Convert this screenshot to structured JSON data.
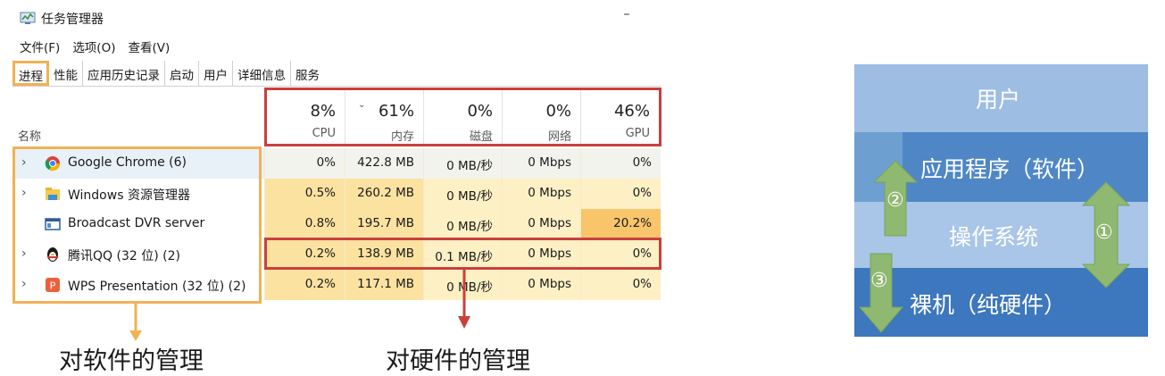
{
  "window": {
    "title": "任务管理器",
    "minimize_glyph": "–",
    "menu": [
      "文件(F)",
      "选项(O)",
      "查看(V)"
    ],
    "tabs": [
      "进程",
      "性能",
      "应用历史记录",
      "启动",
      "用户",
      "详细信息",
      "服务"
    ],
    "active_tab": "进程"
  },
  "table": {
    "name_header": "名称",
    "columns": [
      {
        "pct": "8%",
        "label": "CPU"
      },
      {
        "pct": "61%",
        "label": "内存",
        "sorted": true
      },
      {
        "pct": "0%",
        "label": "磁盘"
      },
      {
        "pct": "0%",
        "label": "网络"
      },
      {
        "pct": "46%",
        "label": "GPU"
      }
    ],
    "rows": [
      {
        "name": "Google Chrome (6)",
        "icon": "chrome-icon",
        "cpu": "0%",
        "mem": "422.8 MB",
        "disk": "0 MB/秒",
        "net": "0 Mbps",
        "gpu": "0%"
      },
      {
        "name": "Windows 资源管理器",
        "icon": "folder-icon",
        "cpu": "0.5%",
        "mem": "260.2 MB",
        "disk": "0 MB/秒",
        "net": "0 Mbps",
        "gpu": "0%"
      },
      {
        "name": "Broadcast DVR server",
        "icon": "window-icon",
        "cpu": "0.8%",
        "mem": "195.7 MB",
        "disk": "0 MB/秒",
        "net": "0 Mbps",
        "gpu": "20.2%"
      },
      {
        "name": "腾讯QQ (32 位) (2)",
        "icon": "penguin-icon",
        "cpu": "0.2%",
        "mem": "138.9 MB",
        "disk": "0.1 MB/秒",
        "net": "0 Mbps",
        "gpu": "0%"
      },
      {
        "name": "WPS Presentation (32 位) (2)",
        "icon": "wps-icon",
        "cpu": "0.2%",
        "mem": "117.1 MB",
        "disk": "0 MB/秒",
        "net": "0 Mbps",
        "gpu": "0%"
      }
    ]
  },
  "captions": {
    "software": "对软件的管理",
    "hardware": "对硬件的管理"
  },
  "diagram": {
    "layers": [
      "用户",
      "应用程序（软件）",
      "操作系统",
      "裸机（纯硬件）"
    ],
    "markers": [
      "②",
      "①",
      "③"
    ]
  },
  "colors": {
    "orange_box": "#f0b254",
    "red_box": "#c8403d",
    "usage_light": "#fdf0c4",
    "usage_mid": "#fbe2a0",
    "usage_high": "#f8c56b",
    "layer_user": "#9dbde3",
    "layer_app": "#4f87c6",
    "layer_os": "#a9c6e8",
    "layer_hw": "#3d77bd",
    "arrow_green": "#8fb870"
  }
}
